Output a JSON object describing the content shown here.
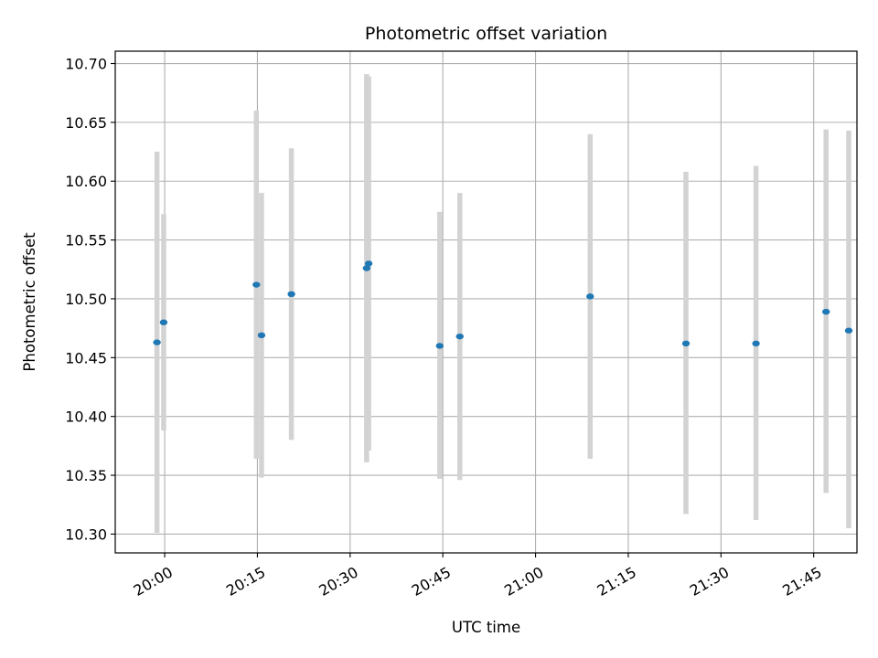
{
  "chart_data": {
    "type": "scatter",
    "title": "Photometric offset variation",
    "xlabel": "UTC time",
    "ylabel": "Photometric offset",
    "xlim": [
      "19:52",
      "21:52"
    ],
    "ylim": [
      10.284,
      10.7105
    ],
    "grid": true,
    "x_ticks": [
      "20:00",
      "20:15",
      "20:30",
      "20:45",
      "21:00",
      "21:15",
      "21:30",
      "21:45"
    ],
    "y_ticks": [
      "10.30",
      "10.35",
      "10.40",
      "10.45",
      "10.50",
      "10.55",
      "10.60",
      "10.65",
      "10.70"
    ],
    "point_color": "#1f77b4",
    "errorbar_color": "#d3d3d3",
    "series": [
      {
        "points": [
          {
            "x": "19:58:45",
            "y": 10.463,
            "lower": 10.301,
            "upper": 10.625
          },
          {
            "x": "19:59:50",
            "y": 10.48,
            "lower": 10.388,
            "upper": 10.572
          },
          {
            "x": "20:14:50",
            "y": 10.512,
            "lower": 10.364,
            "upper": 10.66
          },
          {
            "x": "20:15:40",
            "y": 10.469,
            "lower": 10.348,
            "upper": 10.59
          },
          {
            "x": "20:20:30",
            "y": 10.504,
            "lower": 10.38,
            "upper": 10.628
          },
          {
            "x": "20:32:40",
            "y": 10.526,
            "lower": 10.361,
            "upper": 10.691
          },
          {
            "x": "20:33:00",
            "y": 10.53,
            "lower": 10.371,
            "upper": 10.689
          },
          {
            "x": "20:44:30",
            "y": 10.46,
            "lower": 10.347,
            "upper": 10.574
          },
          {
            "x": "20:47:45",
            "y": 10.468,
            "lower": 10.346,
            "upper": 10.59
          },
          {
            "x": "21:08:50",
            "y": 10.502,
            "lower": 10.364,
            "upper": 10.64
          },
          {
            "x": "21:24:20",
            "y": 10.462,
            "lower": 10.317,
            "upper": 10.608
          },
          {
            "x": "21:35:40",
            "y": 10.462,
            "lower": 10.312,
            "upper": 10.613
          },
          {
            "x": "21:47:00",
            "y": 10.489,
            "lower": 10.335,
            "upper": 10.644
          },
          {
            "x": "21:50:40",
            "y": 10.473,
            "lower": 10.305,
            "upper": 10.643
          }
        ]
      }
    ]
  }
}
